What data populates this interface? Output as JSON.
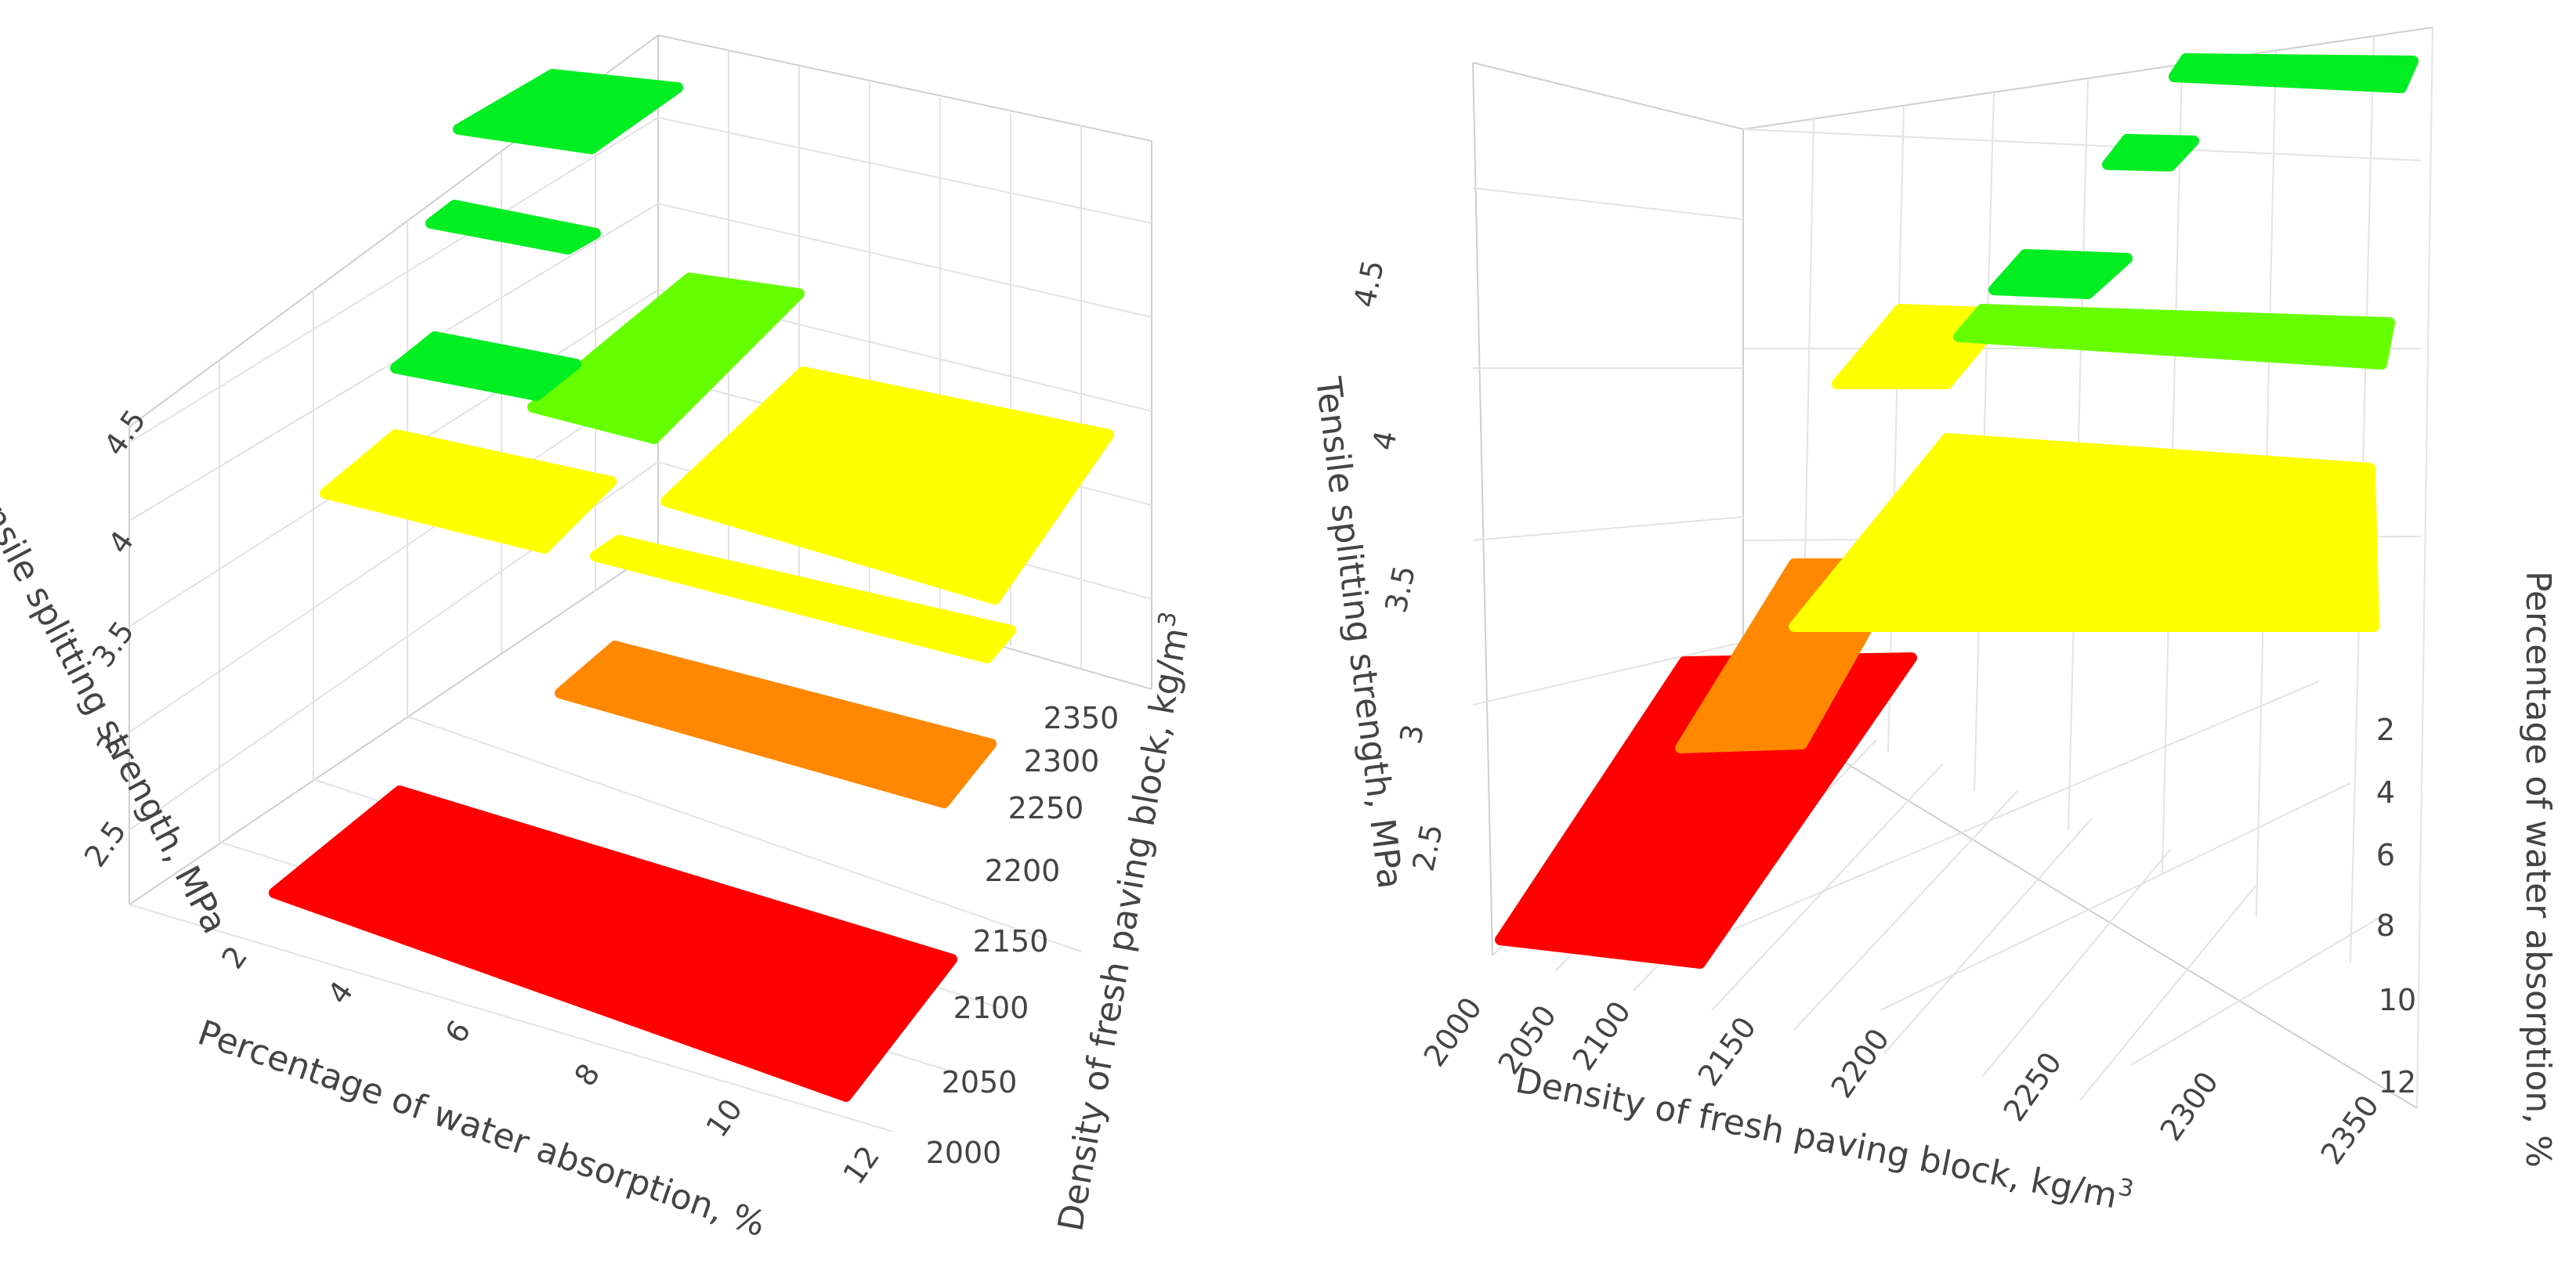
{
  "chart_data": [
    {
      "type": "3d-surface-levels",
      "view": "left",
      "xlabel": "Percentage of water absorption, %",
      "ylabel": "Density of fresh paving block, kg/m",
      "ylabel_sup": "3",
      "zlabel": "Tensile splitting strength, MPa",
      "x_ticks": [
        "2",
        "4",
        "6",
        "8",
        "10",
        "12"
      ],
      "y_ticks": [
        "2000",
        "2050",
        "2100",
        "2150",
        "2200",
        "2250",
        "2300",
        "2350"
      ],
      "z_ticks": [
        "2.5",
        "3",
        "3.5",
        "4",
        "4.5"
      ],
      "levels": [
        {
          "strength": 2.3,
          "color": "#ff0000",
          "water_absorption": [
            2,
            12
          ],
          "density": [
            2000,
            2100
          ]
        },
        {
          "strength": 2.8,
          "color": "#ff8800",
          "water_absorption": [
            5,
            12
          ],
          "density": [
            2100,
            2150
          ]
        },
        {
          "strength": 3.3,
          "color": "#ffff00",
          "water_absorption": [
            5,
            12
          ],
          "density": [
            2150,
            2200
          ]
        },
        {
          "strength": 3.7,
          "color": "#ffff00",
          "water_absorption": [
            2,
            6
          ],
          "density": [
            2100,
            2200
          ]
        },
        {
          "strength": 3.9,
          "color": "#ffff00",
          "water_absorption": [
            7,
            12
          ],
          "density": [
            2200,
            2350
          ]
        },
        {
          "strength": 4.2,
          "color": "#66ff00",
          "water_absorption": [
            4,
            8
          ],
          "density": [
            2200,
            2300
          ]
        },
        {
          "strength": 4.3,
          "color": "#00ee22",
          "water_absorption": [
            2,
            4
          ],
          "density": [
            2100,
            2200
          ]
        },
        {
          "strength": 4.7,
          "color": "#00ee22",
          "water_absorption": [
            2,
            4
          ],
          "density": [
            2150,
            2250
          ]
        },
        {
          "strength": 5.0,
          "color": "#00ee22",
          "water_absorption": [
            2,
            4
          ],
          "density": [
            2200,
            2350
          ]
        }
      ]
    },
    {
      "type": "3d-surface-levels",
      "view": "right",
      "xlabel": "Density of fresh paving block, kg/m",
      "xlabel_sup": "3",
      "ylabel": "Percentage of water absorption, %",
      "zlabel": "Tensile splitting strength, MPa",
      "x_ticks": [
        "2000",
        "2050",
        "2100",
        "2150",
        "2200",
        "2250",
        "2300",
        "2350"
      ],
      "y_ticks": [
        "2",
        "4",
        "6",
        "8",
        "10",
        "12"
      ],
      "z_ticks": [
        "2.5",
        "3",
        "3.5",
        "4",
        "4.5"
      ],
      "levels": [
        {
          "strength": 2.3,
          "color": "#ff0000"
        },
        {
          "strength": 2.8,
          "color": "#ff8800"
        },
        {
          "strength": 3.5,
          "color": "#ffff00"
        },
        {
          "strength": 4.0,
          "color": "#ffff00"
        },
        {
          "strength": 4.2,
          "color": "#66ff00"
        },
        {
          "strength": 4.4,
          "color": "#00ee22"
        },
        {
          "strength": 4.7,
          "color": "#00ee22"
        },
        {
          "strength": 5.0,
          "color": "#00ee22"
        }
      ]
    }
  ]
}
